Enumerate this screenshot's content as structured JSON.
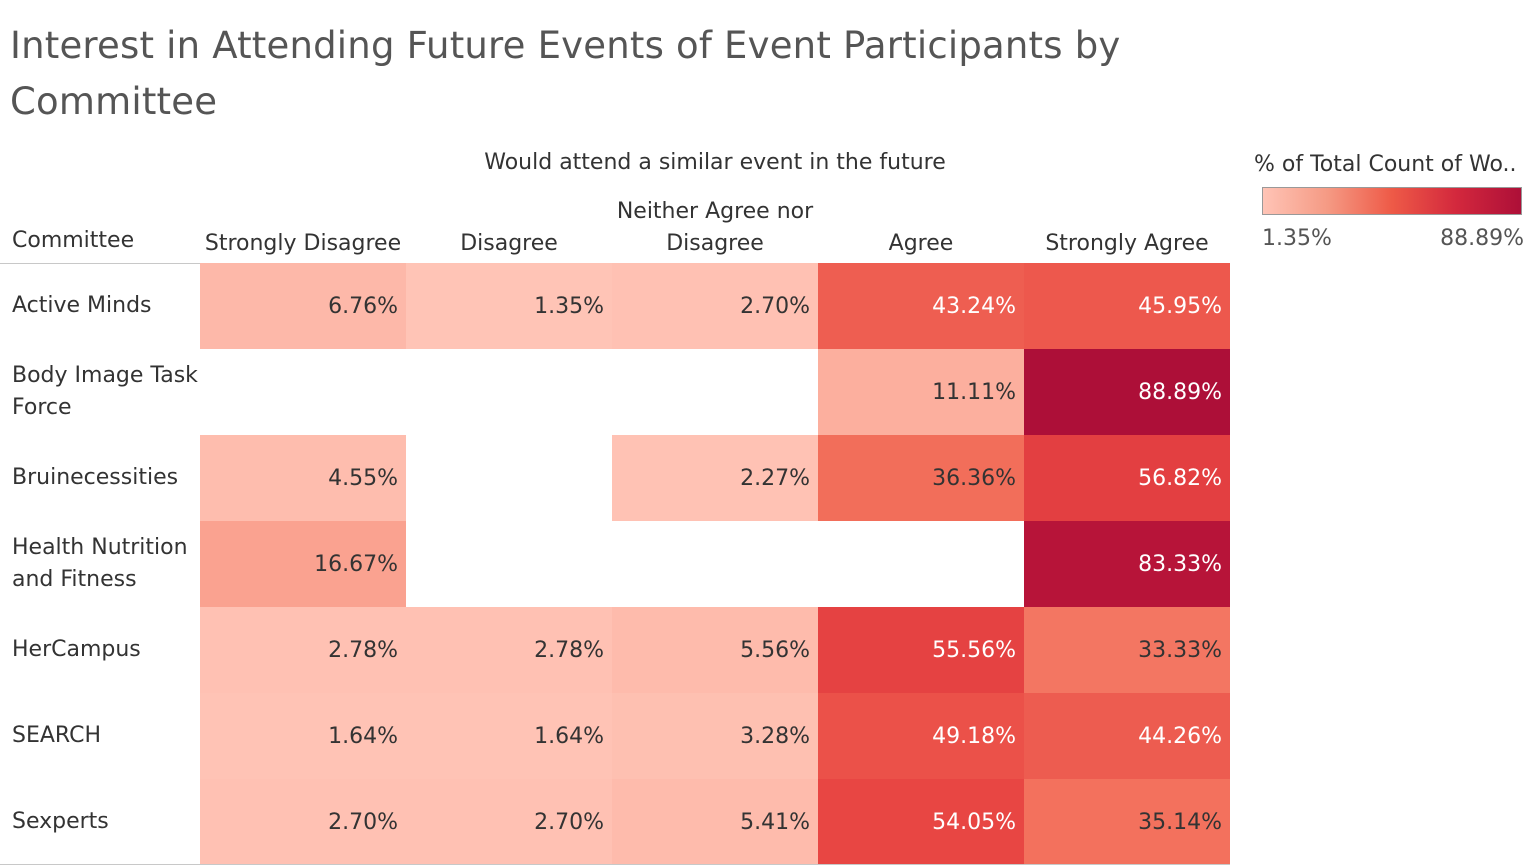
{
  "title": "Interest in Attending Future Events of Event Participants by Committee",
  "legend": {
    "title": "% of Total Count of Wo..",
    "min_label": "1.35%",
    "max_label": "88.89%",
    "min_color": "#ffc4b6",
    "max_color": "#ad0f38"
  },
  "chart_data": {
    "type": "heatmap",
    "title": "Interest in Attending Future Events of Event Participants by Committee",
    "column_group_label": "Would attend a similar event in the future",
    "row_header": "Committee",
    "columns": [
      "Strongly Disagree",
      "Disagree",
      "Neither Agree nor Disagree",
      "Agree",
      "Strongly Agree"
    ],
    "rows": [
      {
        "label": "Active Minds",
        "values": [
          "6.76%",
          "1.35%",
          "2.70%",
          "43.24%",
          "45.95%"
        ]
      },
      {
        "label": "Body Image Task Force",
        "values": [
          null,
          null,
          null,
          "11.11%",
          "88.89%"
        ]
      },
      {
        "label": "Bruinecessities",
        "values": [
          "4.55%",
          null,
          "2.27%",
          "36.36%",
          "56.82%"
        ]
      },
      {
        "label": "Health Nutrition and Fitness",
        "values": [
          "16.67%",
          null,
          null,
          null,
          "83.33%"
        ]
      },
      {
        "label": "HerCampus",
        "values": [
          "2.78%",
          "2.78%",
          "5.56%",
          "55.56%",
          "33.33%"
        ]
      },
      {
        "label": "SEARCH",
        "values": [
          "1.64%",
          "1.64%",
          "3.28%",
          "49.18%",
          "44.26%"
        ]
      },
      {
        "label": "Sexperts",
        "values": [
          "2.70%",
          "2.70%",
          "5.41%",
          "54.05%",
          "35.14%"
        ]
      }
    ]
  }
}
